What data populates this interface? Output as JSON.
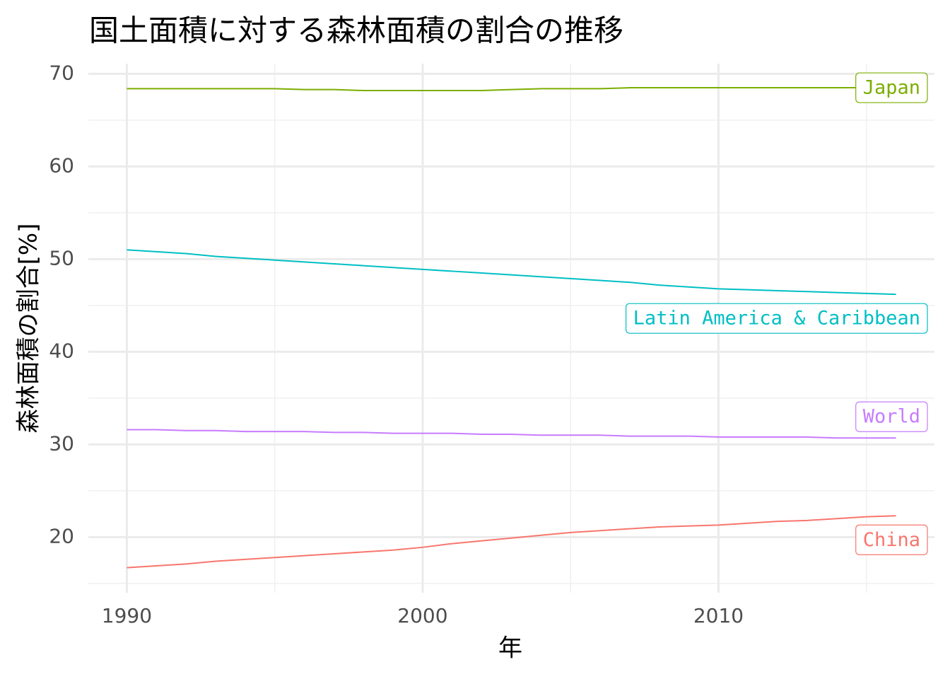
{
  "chart_data": {
    "type": "line",
    "title": "国土面積に対する森林面積の割合の推移",
    "x_label": "年",
    "y_label": "森林面積の割合[%]",
    "x": [
      1990,
      1991,
      1992,
      1993,
      1994,
      1995,
      1996,
      1997,
      1998,
      1999,
      2000,
      2001,
      2002,
      2003,
      2004,
      2005,
      2006,
      2007,
      2008,
      2009,
      2010,
      2011,
      2012,
      2013,
      2014,
      2015,
      2016
    ],
    "series": [
      {
        "name": "Japan",
        "color": "#7CAE00",
        "values": [
          68.4,
          68.4,
          68.4,
          68.4,
          68.4,
          68.4,
          68.3,
          68.3,
          68.2,
          68.2,
          68.2,
          68.2,
          68.2,
          68.3,
          68.4,
          68.4,
          68.4,
          68.5,
          68.5,
          68.5,
          68.5,
          68.5,
          68.5,
          68.5,
          68.5,
          68.5,
          68.5
        ]
      },
      {
        "name": "Latin America & Caribbean",
        "color": "#00BFC4",
        "values": [
          51.0,
          50.8,
          50.6,
          50.3,
          50.1,
          49.9,
          49.7,
          49.5,
          49.3,
          49.1,
          48.9,
          48.7,
          48.5,
          48.3,
          48.1,
          47.9,
          47.7,
          47.5,
          47.2,
          47.0,
          46.8,
          46.7,
          46.6,
          46.5,
          46.4,
          46.3,
          46.2
        ]
      },
      {
        "name": "World",
        "color": "#C77CFF",
        "values": [
          31.6,
          31.6,
          31.5,
          31.5,
          31.4,
          31.4,
          31.4,
          31.3,
          31.3,
          31.2,
          31.2,
          31.2,
          31.1,
          31.1,
          31.0,
          31.0,
          31.0,
          30.9,
          30.9,
          30.9,
          30.8,
          30.8,
          30.8,
          30.8,
          30.7,
          30.7,
          30.7
        ]
      },
      {
        "name": "China",
        "color": "#F8766D",
        "values": [
          16.7,
          16.9,
          17.1,
          17.4,
          17.6,
          17.8,
          18.0,
          18.2,
          18.4,
          18.6,
          18.9,
          19.3,
          19.6,
          19.9,
          20.2,
          20.5,
          20.7,
          20.9,
          21.1,
          21.2,
          21.3,
          21.5,
          21.7,
          21.8,
          22.0,
          22.2,
          22.3
        ]
      }
    ],
    "xlim": [
      1988.7,
      2017.3
    ],
    "xticks": [
      1990,
      2000,
      2010
    ],
    "x_minor_ticks": [
      1995,
      2005,
      2015
    ],
    "ylim": [
      14,
      71.1
    ],
    "yticks": [
      20,
      30,
      40,
      50,
      60,
      70
    ],
    "y_minor_ticks": [
      15,
      25,
      35,
      45,
      55,
      65
    ],
    "grid": true
  }
}
